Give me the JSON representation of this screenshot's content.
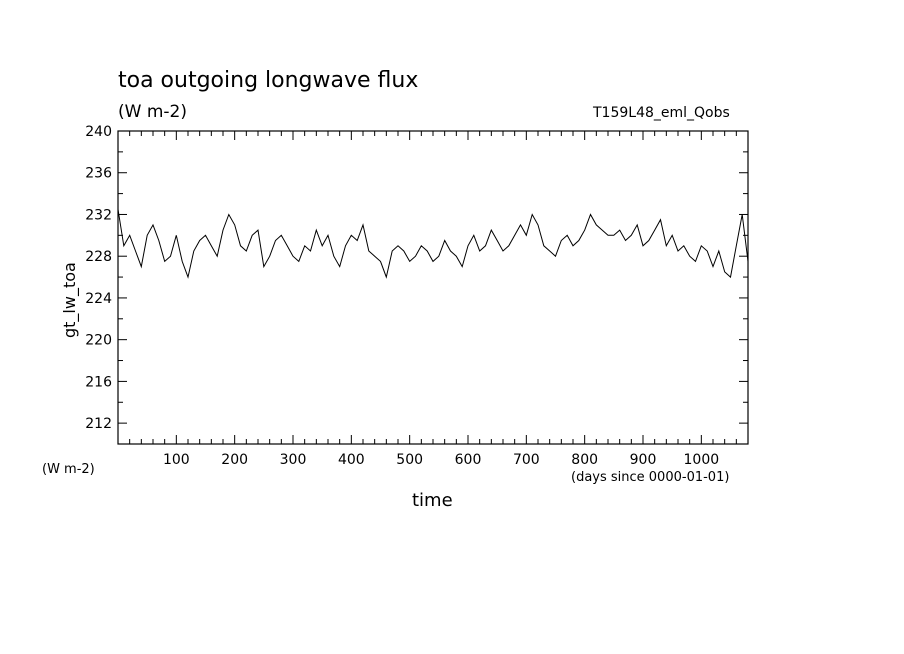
{
  "chart_data": {
    "type": "line",
    "title": "toa outgoing longwave flux",
    "units_label_top": "(W m-2)",
    "units_label_bottom": "(W m-2)",
    "run_label": "T159L48_eml_Qobs",
    "xlabel": "time",
    "xunits": "(days since 0000-01-01)",
    "ylabel": "gt_lw_toa",
    "xlim": [
      0,
      1080
    ],
    "ylim": [
      210,
      240
    ],
    "xticks": [
      100,
      200,
      300,
      400,
      500,
      600,
      700,
      800,
      900,
      1000
    ],
    "xtick_labels": [
      "100",
      "200",
      "300",
      "400",
      "500",
      "600",
      "700",
      "800",
      "900",
      "1000"
    ],
    "yticks": [
      212,
      216,
      220,
      224,
      228,
      232,
      236,
      240
    ],
    "ytick_labels": [
      "212",
      "216",
      "220",
      "224",
      "228",
      "232",
      "236",
      "240"
    ],
    "grid": false,
    "series": [
      {
        "color": "#000000",
        "x": [
          0,
          10,
          20,
          30,
          40,
          50,
          60,
          70,
          80,
          90,
          100,
          110,
          120,
          130,
          140,
          150,
          160,
          170,
          180,
          190,
          200,
          210,
          220,
          230,
          240,
          250,
          260,
          270,
          280,
          290,
          300,
          310,
          320,
          330,
          340,
          350,
          360,
          370,
          380,
          390,
          400,
          410,
          420,
          430,
          440,
          450,
          460,
          470,
          480,
          490,
          500,
          510,
          520,
          530,
          540,
          550,
          560,
          570,
          580,
          590,
          600,
          610,
          620,
          630,
          640,
          650,
          660,
          670,
          680,
          690,
          700,
          710,
          720,
          730,
          740,
          750,
          760,
          770,
          780,
          790,
          800,
          810,
          820,
          830,
          840,
          850,
          860,
          870,
          880,
          890,
          900,
          910,
          920,
          930,
          940,
          950,
          960,
          970,
          980,
          990,
          1000,
          1010,
          1020,
          1030,
          1040,
          1050,
          1060,
          1070,
          1080
        ],
        "y": [
          232.5,
          229,
          230,
          228.5,
          227,
          230,
          231,
          229.5,
          227.5,
          228,
          230,
          227.5,
          226,
          228.5,
          229.5,
          230,
          229,
          228,
          230.5,
          232,
          231,
          229,
          228.5,
          230,
          230.5,
          227,
          228,
          229.5,
          230,
          229,
          228,
          227.5,
          229,
          228.5,
          230.5,
          229,
          230,
          228,
          227,
          229,
          230,
          229.5,
          231,
          228.5,
          228,
          227.5,
          226,
          228.5,
          229,
          228.5,
          227.5,
          228,
          229,
          228.5,
          227.5,
          228,
          229.5,
          228.5,
          228,
          227,
          229,
          230,
          228.5,
          229,
          230.5,
          229.5,
          228.5,
          229,
          230,
          231,
          230,
          232,
          231,
          229,
          228.5,
          228,
          229.5,
          230,
          229,
          229.5,
          230.5,
          232,
          231,
          230.5,
          230,
          230,
          230.5,
          229.5,
          230,
          231,
          229,
          229.5,
          230.5,
          231.5,
          229,
          230,
          228.5,
          229,
          228,
          227.5,
          229,
          228.5,
          227,
          228.5,
          226.5,
          226,
          229,
          232,
          227.5
        ]
      }
    ]
  }
}
